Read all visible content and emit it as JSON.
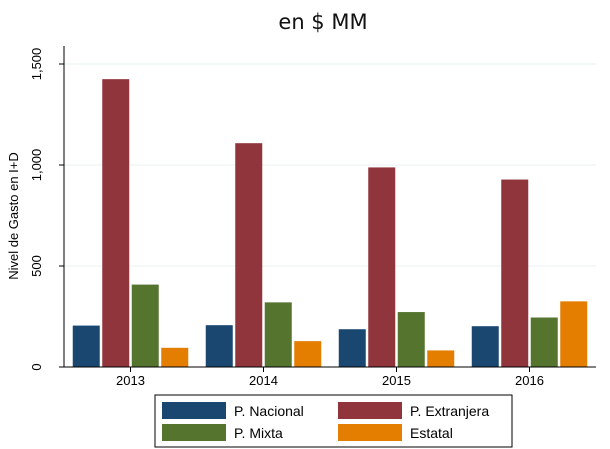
{
  "chart_data": {
    "type": "bar",
    "title": "en $ MM",
    "xlabel": "",
    "ylabel": "Nivel de Gasto en I+D",
    "ylim": [
      0,
      1500
    ],
    "yticks": [
      0,
      500,
      1000,
      1500
    ],
    "ytick_labels": [
      "0",
      "500",
      "1,000",
      "1,500"
    ],
    "categories": [
      "2013",
      "2014",
      "2015",
      "2016"
    ],
    "grid": true,
    "legend_position": "bottom",
    "series": [
      {
        "name": "P. Nacional",
        "color": "#1a476f",
        "values": [
          205,
          207,
          187,
          202
        ]
      },
      {
        "name": "P. Extranjera",
        "color": "#90353b",
        "values": [
          1425,
          1108,
          988,
          928
        ]
      },
      {
        "name": "P. Mixta",
        "color": "#55752f",
        "values": [
          408,
          320,
          272,
          245
        ]
      },
      {
        "name": "Estatal",
        "color": "#e37e00",
        "values": [
          95,
          128,
          82,
          325
        ]
      }
    ]
  }
}
